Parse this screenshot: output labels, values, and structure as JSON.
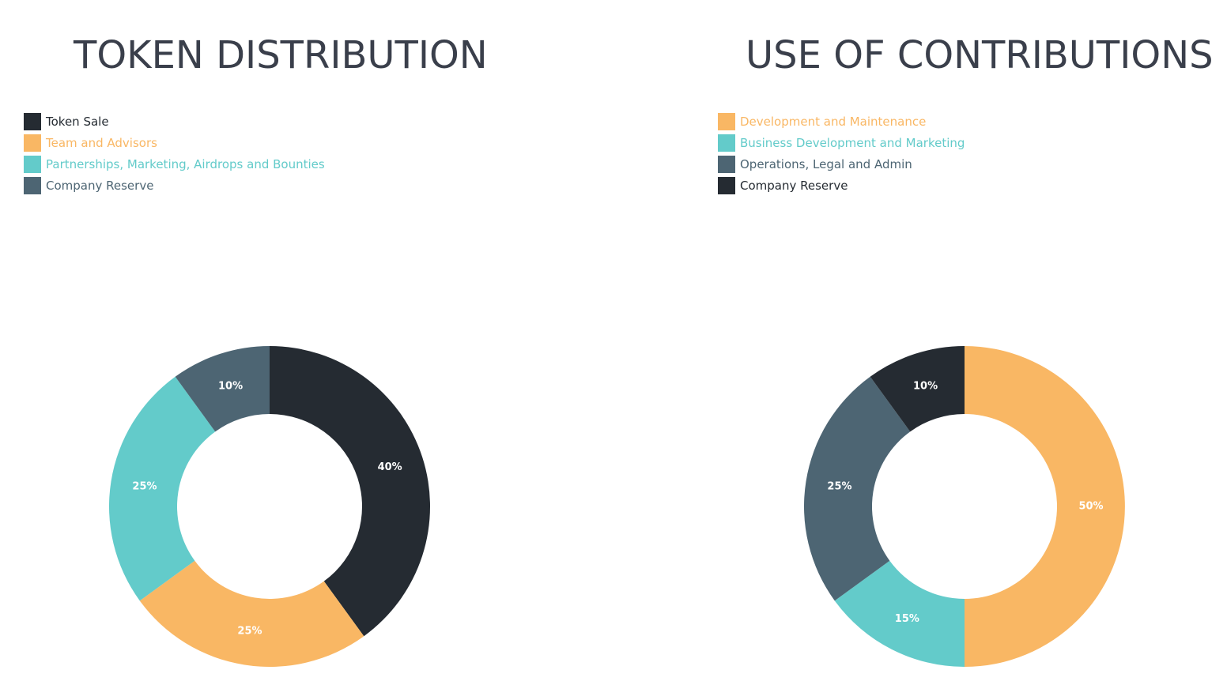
{
  "charts": [
    {
      "title": "TOKEN DISTRIBUTION",
      "legend": [
        {
          "label": "Token Sale",
          "color": "#252b32",
          "text_color": "#252b32"
        },
        {
          "label": "Team and Advisors",
          "color": "#f9b764",
          "text_color": "#f9b764"
        },
        {
          "label": "Partnerships, Marketing, Airdrops and Bounties",
          "color": "#63cbca",
          "text_color": "#63cbca"
        },
        {
          "label": "Company Reserve",
          "color": "#4d6573",
          "text_color": "#4d6573"
        }
      ]
    },
    {
      "title": "USE OF CONTRIBUTIONS",
      "legend": [
        {
          "label": "Development and Maintenance",
          "color": "#f9b764",
          "text_color": "#f9b764"
        },
        {
          "label": "Business Development and Marketing",
          "color": "#63cbca",
          "text_color": "#63cbca"
        },
        {
          "label": "Operations, Legal and Admin",
          "color": "#4d6573",
          "text_color": "#4d6573"
        },
        {
          "label": "Company Reserve",
          "color": "#252b32",
          "text_color": "#252b32"
        }
      ]
    }
  ],
  "chart_data": [
    {
      "type": "pie",
      "donut": true,
      "title": "TOKEN DISTRIBUTION",
      "legend_position": "top-left",
      "slices": [
        {
          "label": "Token Sale",
          "value": 40,
          "display": "40%",
          "color": "#252b32"
        },
        {
          "label": "Team and Advisors",
          "value": 25,
          "display": "25%",
          "color": "#f9b764"
        },
        {
          "label": "Partnerships, Marketing, Airdrops and Bounties",
          "value": 25,
          "display": "25%",
          "color": "#63cbca"
        },
        {
          "label": "Company Reserve",
          "value": 10,
          "display": "10%",
          "color": "#4d6573"
        }
      ]
    },
    {
      "type": "pie",
      "donut": true,
      "title": "USE OF CONTRIBUTIONS",
      "legend_position": "top-left",
      "slices": [
        {
          "label": "Development and Maintenance",
          "value": 50,
          "display": "50%",
          "color": "#f9b764"
        },
        {
          "label": "Business Development and Marketing",
          "value": 15,
          "display": "15%",
          "color": "#63cbca"
        },
        {
          "label": "Operations, Legal and Admin",
          "value": 25,
          "display": "25%",
          "color": "#4d6573"
        },
        {
          "label": "Company Reserve",
          "value": 10,
          "display": "10%",
          "color": "#252b32"
        }
      ]
    }
  ]
}
